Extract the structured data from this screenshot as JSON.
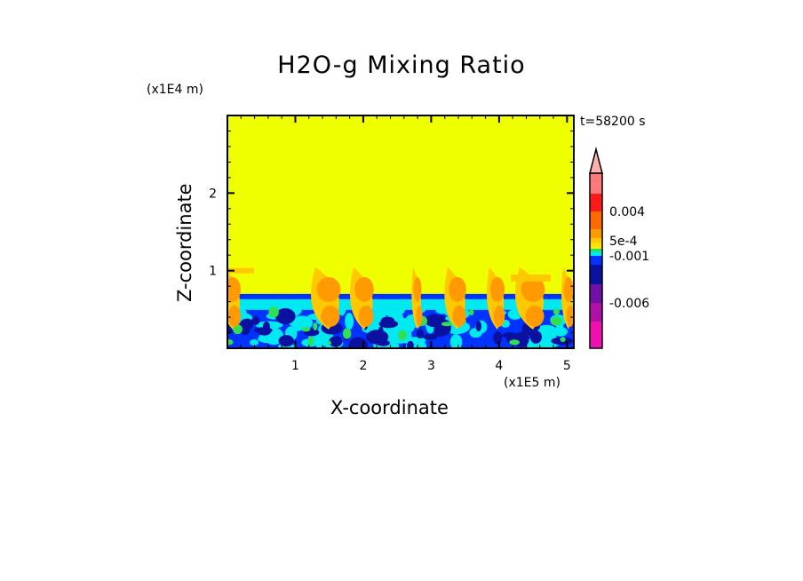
{
  "chart_data": {
    "type": "heatmap",
    "title": "H2O-g Mixing Ratio",
    "xlabel": "X-coordinate",
    "ylabel": "Z-coordinate",
    "x_unit": "(x1E5 m)",
    "y_unit": "(x1E4 m)",
    "annotation": "t=58200 s",
    "xlim": [
      0,
      5.1
    ],
    "ylim": [
      0,
      3.0
    ],
    "x_ticks": [
      "1",
      "2",
      "3",
      "4",
      "5"
    ],
    "y_ticks": [
      "1",
      "2"
    ],
    "grid": false,
    "colorbar": {
      "labels": [
        "0.004",
        "5e-4",
        "-0.001",
        "-0.006"
      ],
      "colors_top_to_bottom": [
        "#ffb0b0",
        "#ff7a7a",
        "#ff1a1a",
        "#ff6a00",
        "#ff9a00",
        "#ffc800",
        "#ffe000",
        "#f0f000",
        "#30e050",
        "#00e8f0",
        "#0033ff",
        "#0a10a0",
        "#7010a8",
        "#b010a8",
        "#f010b0"
      ],
      "extend": "max"
    },
    "field_description_levels": {
      "background": "#f0ff00",
      "moist_layer_top_z": 0.7
    }
  }
}
